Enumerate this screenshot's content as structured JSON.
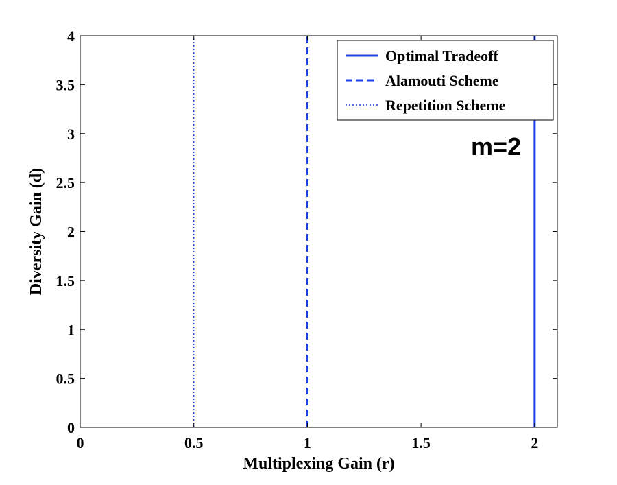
{
  "chart_data": {
    "type": "line",
    "title": "",
    "xlabel": "Multiplexing Gain (r)",
    "ylabel": "Diversity Gain (d)",
    "xlim": [
      0,
      2.1
    ],
    "ylim": [
      0,
      4
    ],
    "xticks": [
      0,
      0.5,
      1,
      1.5,
      2
    ],
    "xtick_labels": [
      "0",
      "0.5",
      "1",
      "1.5",
      "2"
    ],
    "yticks": [
      0,
      0.5,
      1,
      1.5,
      2,
      2.5,
      3,
      3.5,
      4
    ],
    "ytick_labels": [
      "0",
      "0.5",
      "1",
      "1.5",
      "2",
      "2.5",
      "3",
      "3.5",
      "4"
    ],
    "grid": false,
    "legend_position": "top-right",
    "series": [
      {
        "name": "Optimal Tradeoff",
        "style": "solid",
        "color": "#1f3fe6",
        "x": [
          2,
          2
        ],
        "y": [
          0,
          4
        ]
      },
      {
        "name": "Alamouti Scheme",
        "style": "dashed",
        "color": "#1f3fe6",
        "x": [
          1,
          1
        ],
        "y": [
          0,
          4
        ]
      },
      {
        "name": "Repetition Scheme",
        "style": "dotted",
        "color": "#1f3fe6",
        "x": [
          0.5,
          0.5
        ],
        "y": [
          0,
          4
        ]
      }
    ],
    "annotations": [
      {
        "text": "m=2",
        "x": 1.72,
        "y": 2.78
      }
    ]
  }
}
